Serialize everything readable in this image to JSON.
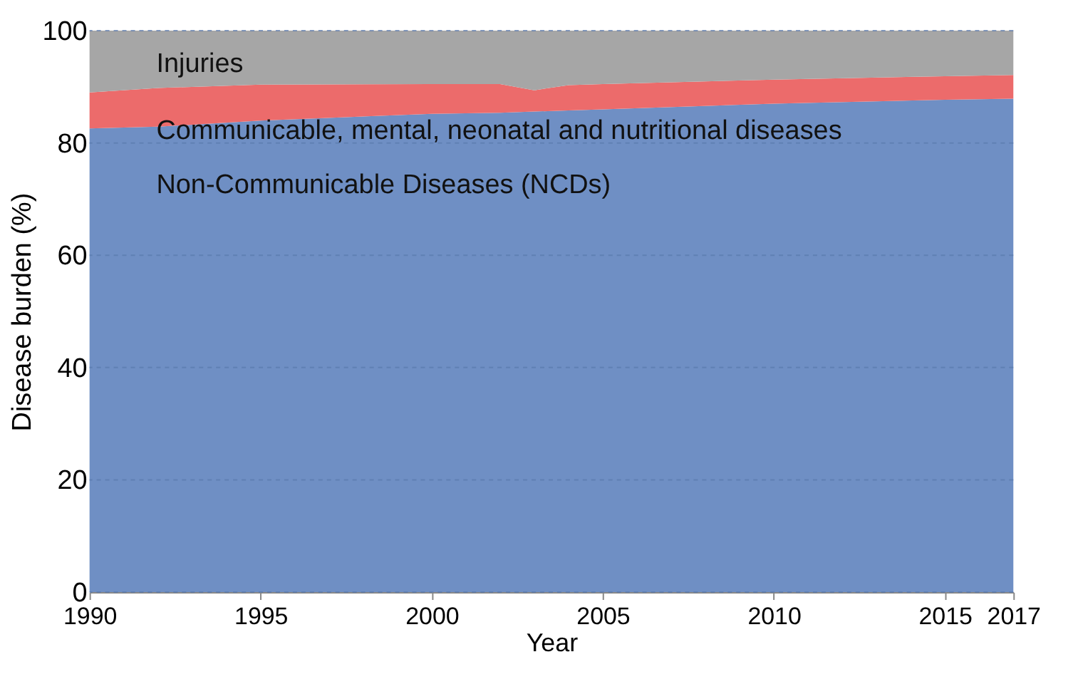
{
  "chart_data": {
    "type": "area",
    "stacked": true,
    "xlabel": "Year",
    "ylabel": "Disease burden (%)",
    "x": [
      1990,
      1992,
      1995,
      2000,
      2002,
      2003,
      2004,
      2005,
      2010,
      2015,
      2017
    ],
    "series": [
      {
        "name": "Non-Communicable Diseases (NCDs)",
        "color": "#6f8fc4",
        "values": [
          82.6,
          82.9,
          84.0,
          85.2,
          85.4,
          85.6,
          85.8,
          86.0,
          87.0,
          87.7,
          87.9
        ]
      },
      {
        "name": "Communicable, mental, neonatal and nutritional diseases",
        "color": "#ec6b6b",
        "values": [
          6.4,
          6.9,
          6.4,
          5.3,
          5.1,
          3.8,
          4.5,
          4.5,
          4.3,
          4.2,
          4.2
        ]
      },
      {
        "name": "Injuries",
        "color": "#a6a6a6",
        "values": [
          11.0,
          10.2,
          9.6,
          9.5,
          9.5,
          10.6,
          9.7,
          9.5,
          8.7,
          8.1,
          7.9
        ]
      }
    ],
    "xlim": [
      1990,
      2017
    ],
    "xticks": [
      1990,
      1995,
      2000,
      2005,
      2010,
      2015,
      2017
    ],
    "ylim": [
      0,
      100
    ],
    "yticks": [
      0,
      20,
      40,
      60,
      80,
      100
    ],
    "grid": "y",
    "legend": false
  }
}
